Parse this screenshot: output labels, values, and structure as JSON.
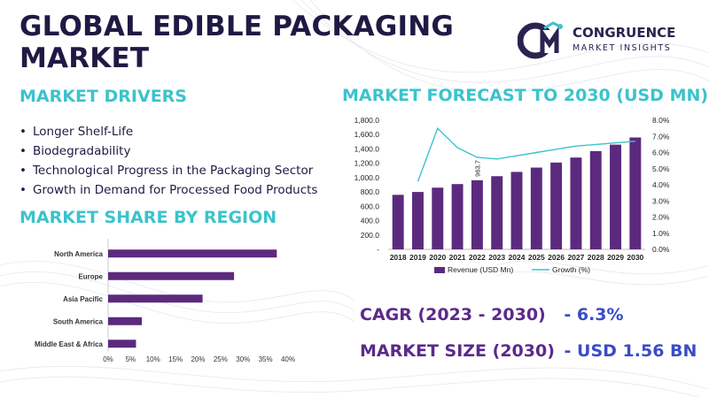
{
  "title": "GLOBAL EDIBLE PACKAGING MARKET",
  "logo": {
    "name": "CONGRUENCE",
    "tagline": "MARKET INSIGHTS"
  },
  "drivers": {
    "heading": "MARKET DRIVERS",
    "items": [
      "Longer Shelf-Life",
      "Biodegradability",
      "Technological Progress in the Packaging Sector",
      "Growth in Demand for Processed Food Products"
    ]
  },
  "share": {
    "heading": "MARKET SHARE BY REGION"
  },
  "forecast": {
    "heading": "MARKET FORECAST TO 2030 (USD MN)"
  },
  "kpis": {
    "cagr_label": "CAGR (2023 - 2030)",
    "cagr_value": "- 6.3%",
    "size_label": "MARKET SIZE (2030)",
    "size_value": "- USD 1.56 BN"
  },
  "colors": {
    "bar": "#5b2a7e",
    "line": "#3cc3cc",
    "title": "#1f1a44",
    "heading": "#3cc3cc"
  },
  "chart_data": [
    {
      "type": "bar",
      "orientation": "horizontal",
      "categories": [
        "North America",
        "Europe",
        "Asia Pacific",
        "South America",
        "Middle East & Africa"
      ],
      "values": [
        37.5,
        28,
        21,
        7.5,
        6.2
      ],
      "xlim": [
        0,
        40
      ],
      "xticks": [
        "0%",
        "5%",
        "10%",
        "15%",
        "20%",
        "25%",
        "30%",
        "35%",
        "40%"
      ],
      "grid": false
    },
    {
      "type": "bar",
      "categories": [
        "2018",
        "2019",
        "2020",
        "2021",
        "2022",
        "2023",
        "2024",
        "2025",
        "2026",
        "2027",
        "2028",
        "2029",
        "2030"
      ],
      "series": [
        {
          "name": "Revenue (USD Mn)",
          "type": "bar",
          "axis": "left",
          "values": [
            760,
            800,
            860,
            910,
            963.7,
            1020,
            1080,
            1140,
            1210,
            1280,
            1370,
            1460,
            1560
          ]
        },
        {
          "name": "Growth (%)",
          "type": "line",
          "axis": "right",
          "values": [
            null,
            4.2,
            7.5,
            6.3,
            5.7,
            5.6,
            5.8,
            6.0,
            6.2,
            6.4,
            6.5,
            6.6,
            6.7
          ]
        }
      ],
      "data_labels": [
        {
          "category": "2022",
          "text": "963.7"
        }
      ],
      "ylim_left": [
        0,
        1800
      ],
      "yticks_left": [
        "-",
        "200.0",
        "400.0",
        "600.0",
        "800.0",
        "1,000.0",
        "1,200.0",
        "1,400.0",
        "1,600.0",
        "1,800.0"
      ],
      "ylim_right": [
        0,
        8
      ],
      "yticks_right": [
        "0.0%",
        "1.0%",
        "2.0%",
        "3.0%",
        "4.0%",
        "5.0%",
        "6.0%",
        "7.0%",
        "8.0%"
      ],
      "legend": "bottom",
      "grid": false
    }
  ]
}
